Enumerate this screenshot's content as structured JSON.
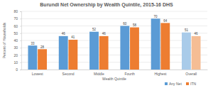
{
  "chart_data": {
    "type": "bar",
    "title": "Burundi Net Ownership by Wealth Quintile, 2015-16 DHS",
    "x_label": "Wealth Quintile",
    "y_label": "Percent of Households",
    "categories": [
      "Lowest",
      "Second",
      "Middle",
      "Fourth",
      "Highest",
      "Overall"
    ],
    "series": [
      {
        "name": "Any Net",
        "color": "#5b9bd5",
        "colors": [
          "#5b9bd5",
          "#5b9bd5",
          "#5b9bd5",
          "#5b9bd5",
          "#5b9bd5",
          "#a9cbe9"
        ],
        "values": [
          33,
          46,
          52,
          60,
          70,
          51
        ]
      },
      {
        "name": "ITN",
        "color": "#ed7d31",
        "colors": [
          "#ed7d31",
          "#ed7d31",
          "#ed7d31",
          "#ed7d31",
          "#ed7d31",
          "#f5bd94"
        ],
        "values": [
          28,
          41,
          46,
          58,
          64,
          46
        ]
      }
    ],
    "ylim": [
      0,
      80
    ],
    "yticks": [
      0,
      10,
      20,
      30,
      40,
      50,
      60,
      70,
      80
    ],
    "grid": true,
    "data_labels": true,
    "legend": "bottom-right"
  }
}
